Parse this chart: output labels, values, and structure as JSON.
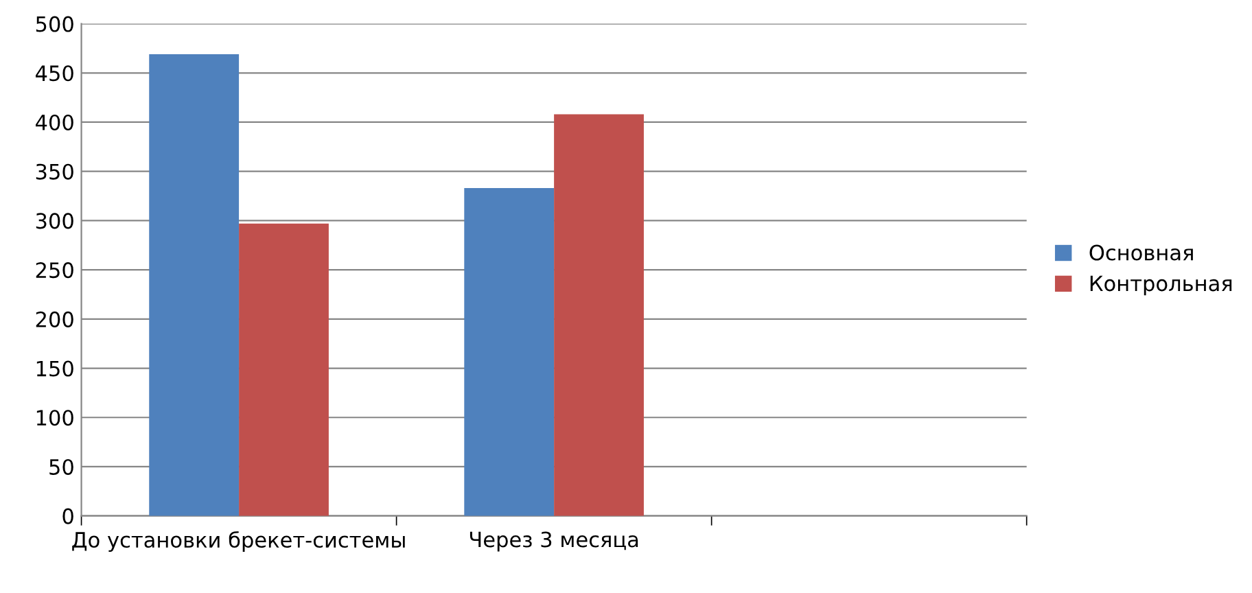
{
  "chart_data": {
    "type": "bar",
    "categories": [
      "До установки брекет-системы",
      "Через 3 месяца",
      null
    ],
    "series": [
      {
        "name": "Основная",
        "color": "#4f81bd",
        "values": [
          469,
          333,
          null
        ]
      },
      {
        "name": "Контрольная",
        "color": "#c0504d",
        "values": [
          297,
          408,
          null
        ]
      }
    ],
    "ylim": [
      0,
      500
    ],
    "yticks": [
      0,
      50,
      100,
      150,
      200,
      250,
      300,
      350,
      400,
      450,
      500
    ],
    "grid": "y",
    "legend": "right"
  }
}
